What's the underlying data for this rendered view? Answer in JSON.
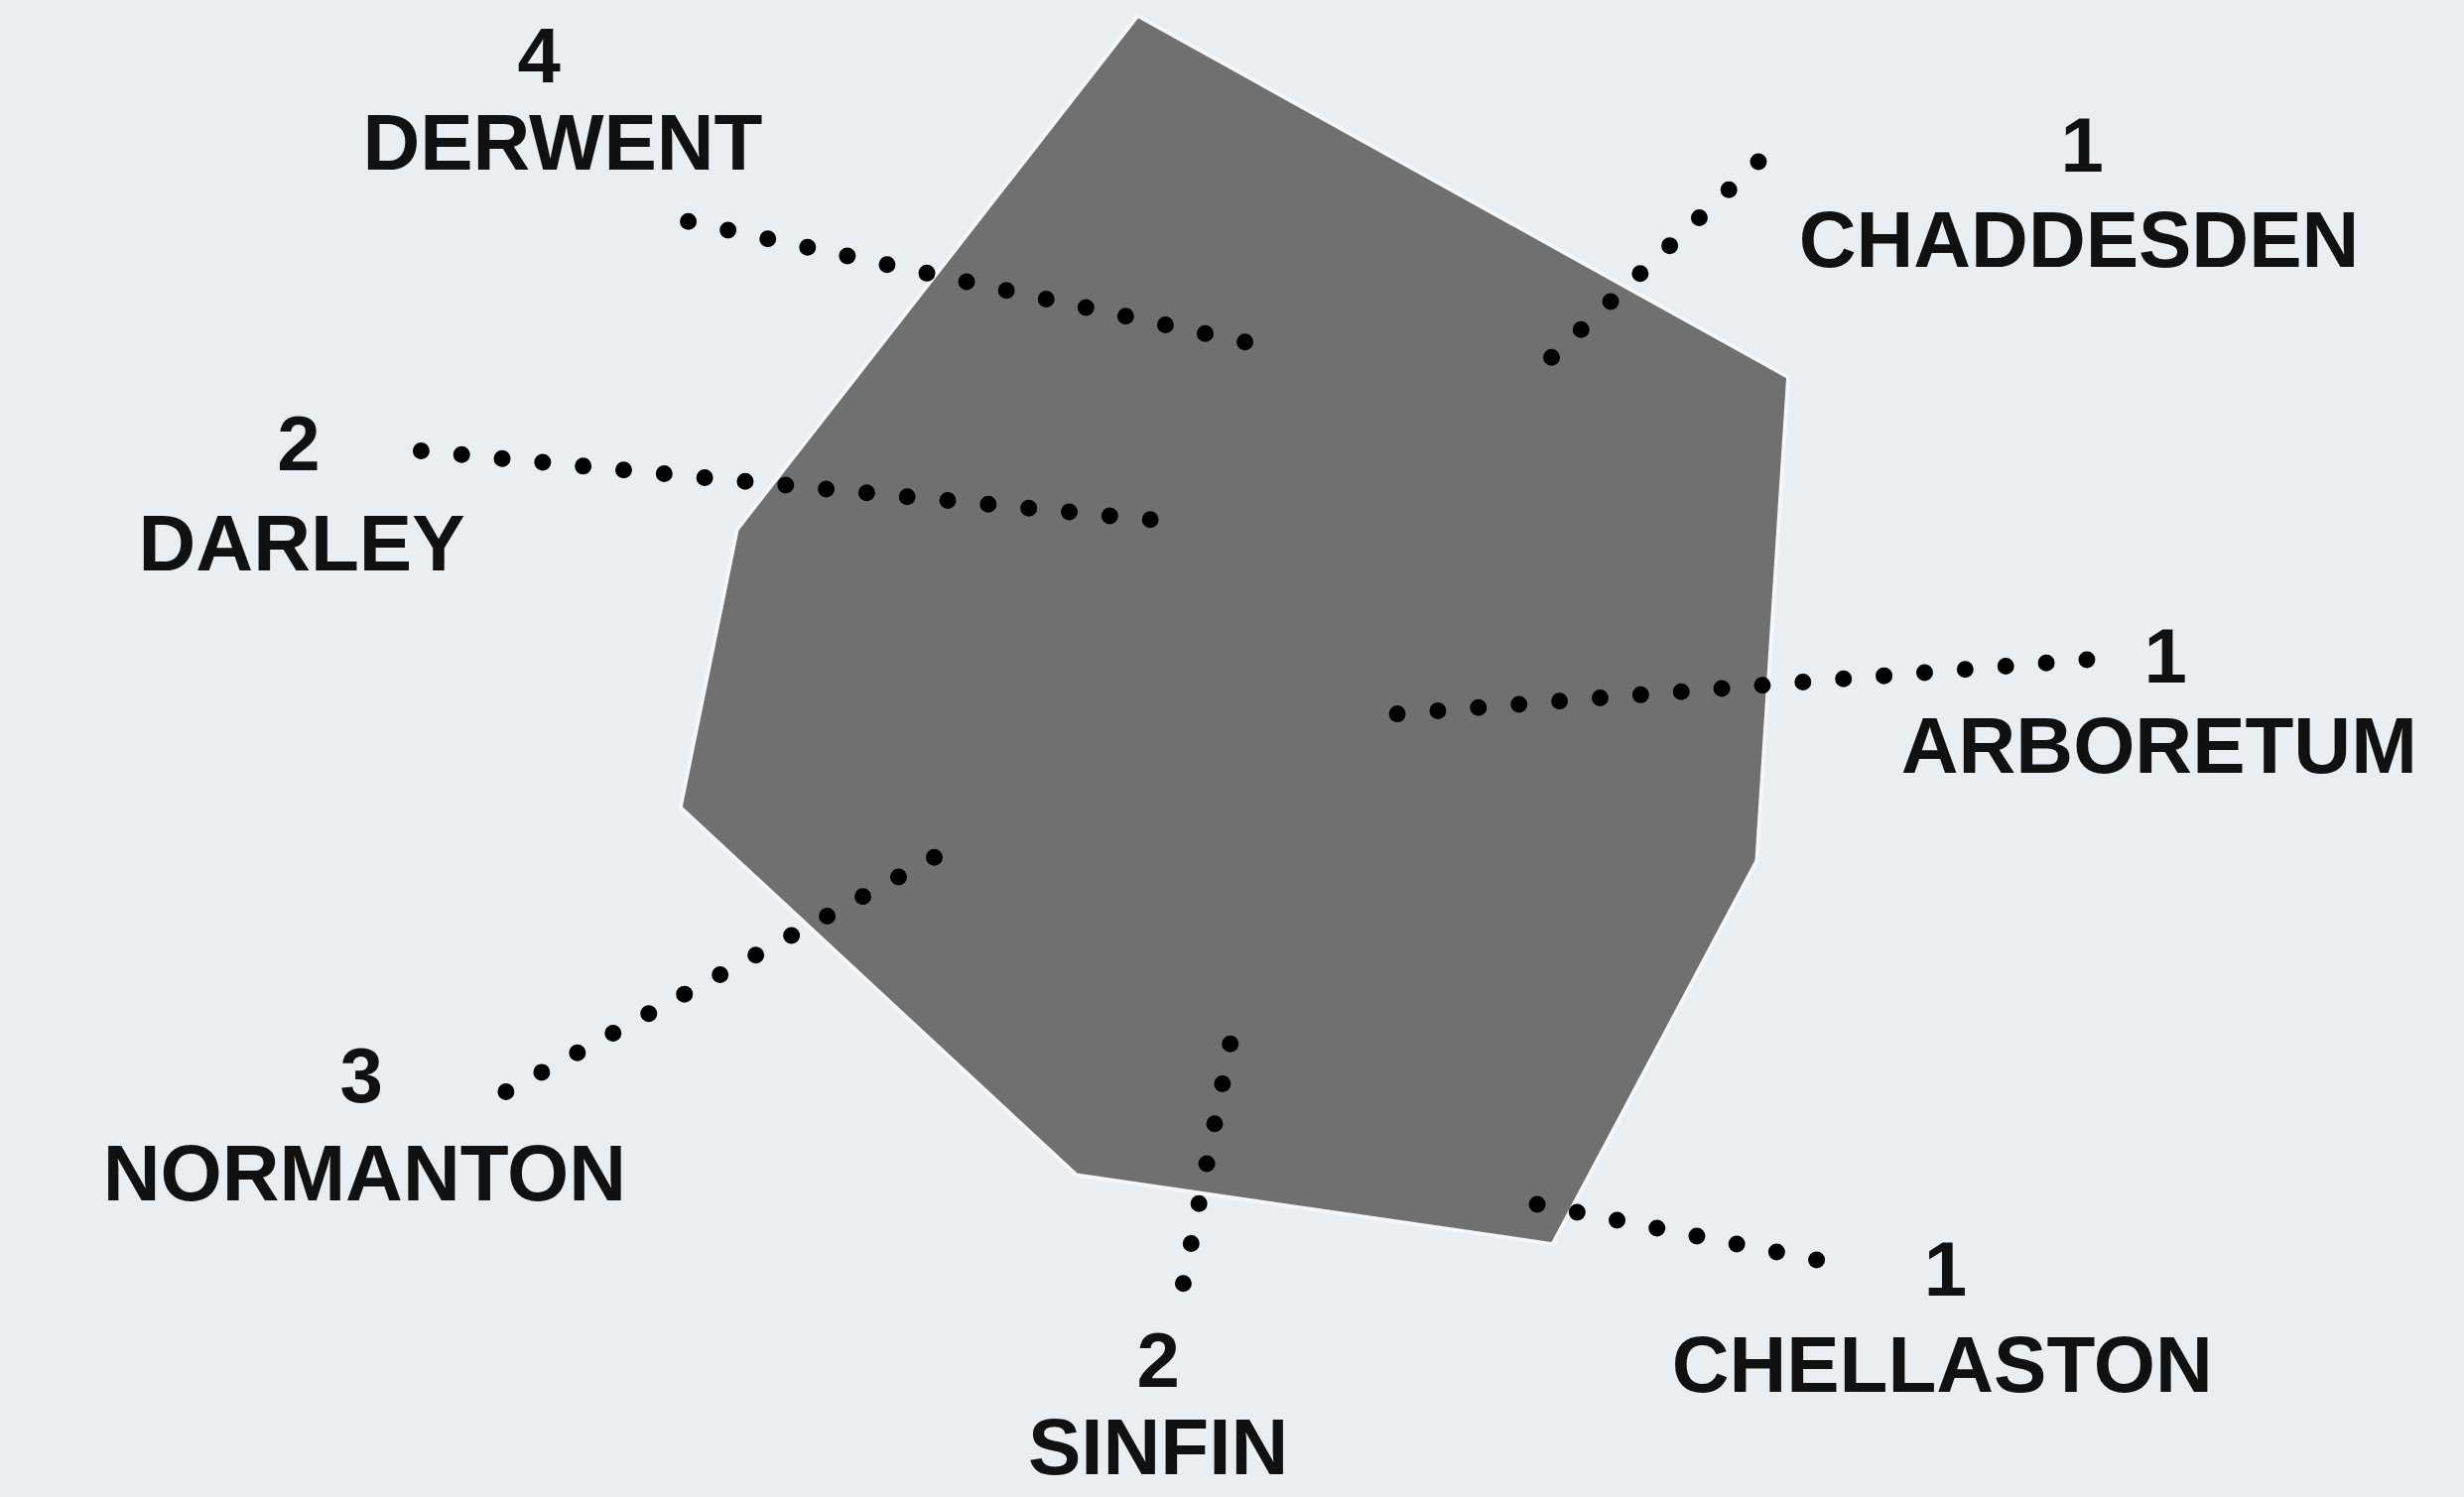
{
  "chart_data": {
    "type": "other",
    "categories": [
      "DERWENT",
      "CHADDESDEN",
      "DARLEY",
      "ARBORETUM",
      "NORMANTON",
      "CHELLASTON",
      "SINFIN"
    ],
    "values": [
      4,
      1,
      2,
      1,
      3,
      1,
      2
    ],
    "data_labels": true
  }
}
